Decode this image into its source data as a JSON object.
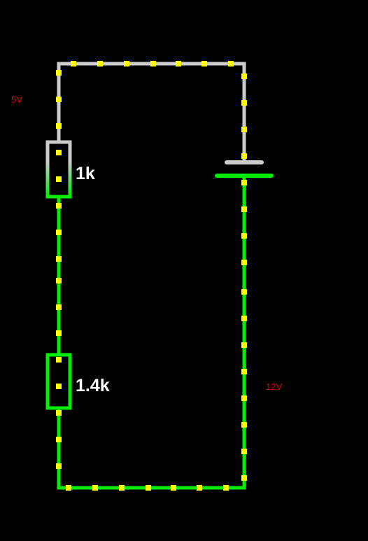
{
  "labels": {
    "top_voltage": "5V",
    "supply_voltage": "12V",
    "resistor_1": "1k",
    "resistor_2": "1.4k"
  },
  "colors": {
    "background": "#000000",
    "wire_high": "#cccccc",
    "wire_low": "#00ee00",
    "current_dot": "#ffff00",
    "voltage_label": "#e00000",
    "component_label": "#ffffff"
  }
}
